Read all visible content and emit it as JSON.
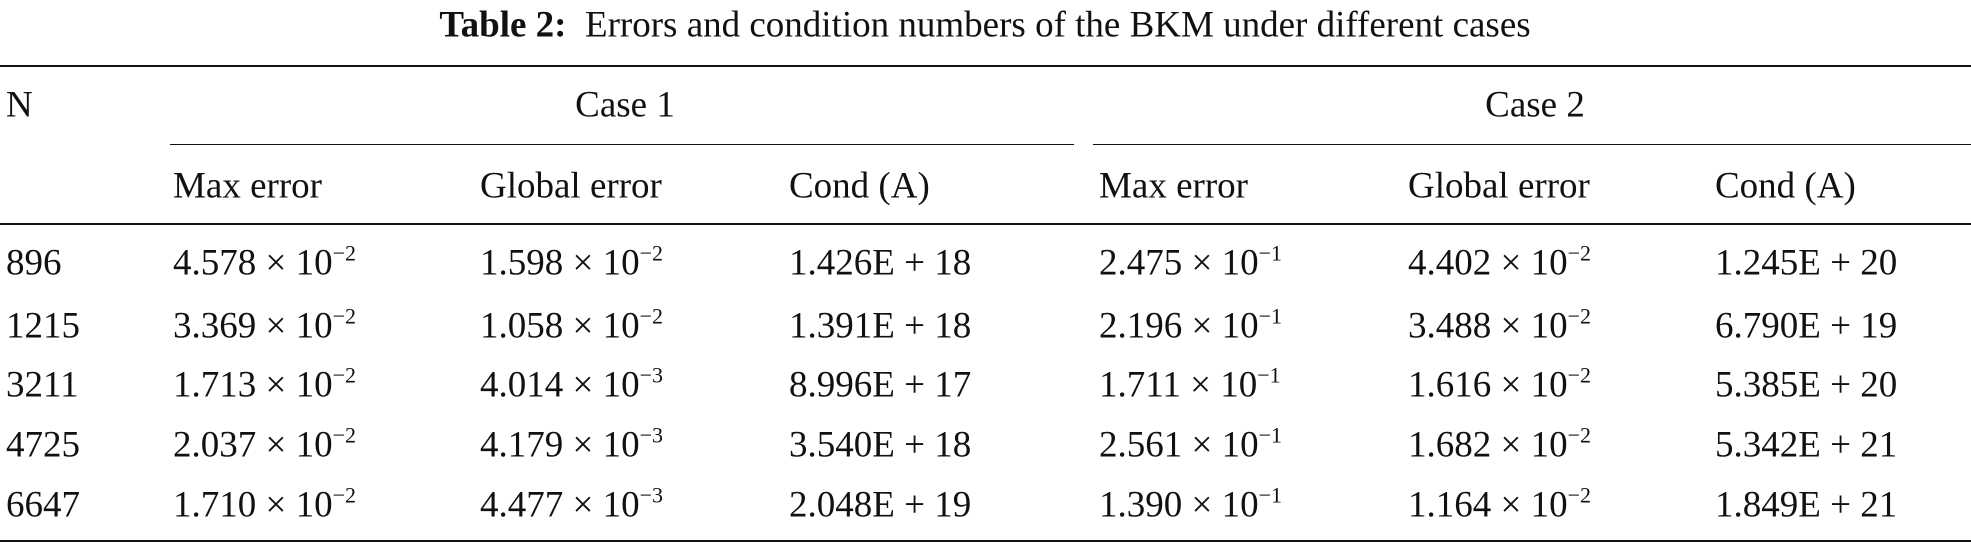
{
  "caption": {
    "label": "Table 2:",
    "text": "Errors and condition numbers of the BKM under different cases"
  },
  "table": {
    "row_header": "N",
    "groups": [
      "Case 1",
      "Case 2"
    ],
    "subheaders": [
      "Max error",
      "Global error",
      "Cond (A)",
      "Max error",
      "Global error",
      "Cond (A)"
    ],
    "rows": [
      [
        "896",
        {
          "base": "4.578 × 10",
          "exp": "−2"
        },
        {
          "base": "1.598 × 10",
          "exp": "−2"
        },
        "1.426E + 18",
        {
          "base": "2.475 × 10",
          "exp": "−1"
        },
        {
          "base": "4.402 × 10",
          "exp": "−2"
        },
        "1.245E + 20"
      ],
      [
        "1215",
        {
          "base": "3.369 × 10",
          "exp": "−2"
        },
        {
          "base": "1.058 × 10",
          "exp": "−2"
        },
        "1.391E + 18",
        {
          "base": "2.196 × 10",
          "exp": "−1"
        },
        {
          "base": "3.488 × 10",
          "exp": "−2"
        },
        "6.790E + 19"
      ],
      [
        "3211",
        {
          "base": "1.713 × 10",
          "exp": "−2"
        },
        {
          "base": "4.014 × 10",
          "exp": "−3"
        },
        "8.996E + 17",
        {
          "base": "1.711 × 10",
          "exp": "−1"
        },
        {
          "base": "1.616 × 10",
          "exp": "−2"
        },
        "5.385E + 20"
      ],
      [
        "4725",
        {
          "base": "2.037 × 10",
          "exp": "−2"
        },
        {
          "base": "4.179 × 10",
          "exp": "−3"
        },
        "3.540E + 18",
        {
          "base": "2.561 × 10",
          "exp": "−1"
        },
        {
          "base": "1.682 × 10",
          "exp": "−2"
        },
        "5.342E + 21"
      ],
      [
        "6647",
        {
          "base": "1.710 × 10",
          "exp": "−2"
        },
        {
          "base": "4.477 × 10",
          "exp": "−3"
        },
        "2.048E + 19",
        {
          "base": "1.390 × 10",
          "exp": "−1"
        },
        {
          "base": "1.164 × 10",
          "exp": "−2"
        },
        "1.849E + 21"
      ]
    ]
  }
}
